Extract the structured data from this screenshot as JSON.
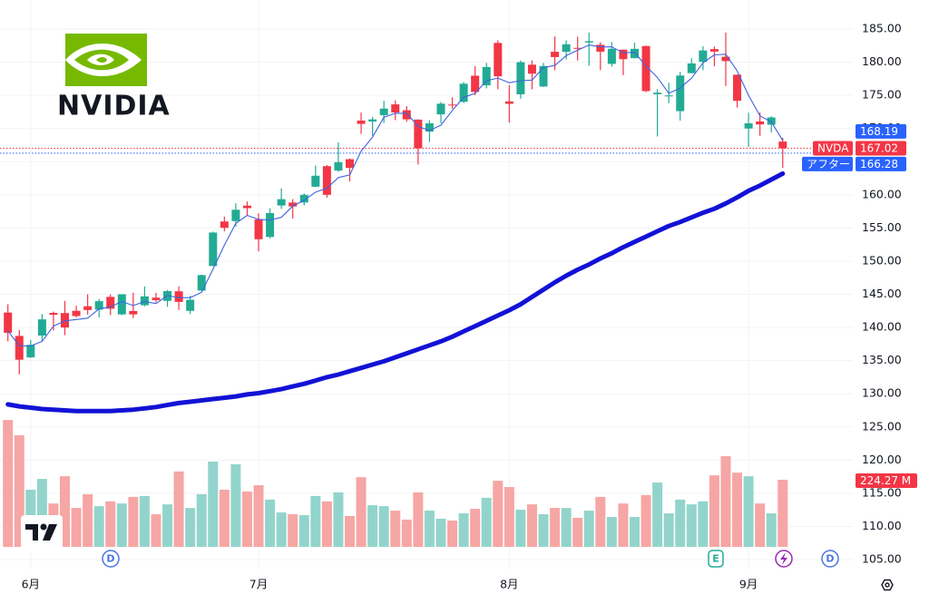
{
  "chart_data": {
    "type": "candlestick",
    "symbol": "NVDA",
    "logo_text": "NVIDIA",
    "categories": [
      null,
      null,
      "6月",
      null,
      null,
      null,
      null,
      null,
      null,
      null,
      null,
      null,
      null,
      null,
      null,
      null,
      null,
      null,
      null,
      null,
      null,
      null,
      "7月",
      null,
      null,
      null,
      null,
      null,
      null,
      null,
      null,
      null,
      null,
      null,
      null,
      null,
      null,
      null,
      null,
      null,
      null,
      null,
      null,
      null,
      "8月",
      null,
      null,
      null,
      null,
      null,
      null,
      null,
      null,
      null,
      null,
      null,
      null,
      null,
      null,
      null,
      null,
      null,
      null,
      null,
      null,
      "9月",
      null,
      null,
      null
    ],
    "open": [
      142.25,
      138.72,
      135.49,
      138.78,
      142.19,
      142.17,
      142.51,
      143.19,
      142.69,
      144.61,
      141.97,
      142.48,
      143.35,
      144.49,
      144.01,
      145.45,
      142.5,
      145.56,
      149.27,
      155.98,
      156.04,
      158.37,
      156.29,
      153.64,
      158.39,
      158.83,
      158.84,
      161.22,
      164.32,
      163.66,
      165.37,
      171.19,
      171.06,
      172.02,
      173.64,
      172.75,
      171.34,
      169.53,
      172.13,
      173.61,
      174.02,
      177.96,
      176.51,
      182.9,
      174.09,
      175.16,
      179.62,
      176.33,
      181.57,
      181.56,
      182.16,
      182.96,
      182.62,
      179.75,
      181.88,
      180.6,
      182.43,
      175.17,
      174.85,
      172.61,
      178.35,
      180.06,
      181.98,
      180.82,
      178.11,
      170.0,
      171.06,
      170.57,
      168.03
    ],
    "high": [
      143.49,
      139.62,
      138.12,
      142.0,
      142.39,
      144.0,
      143.27,
      145.0,
      144.29,
      144.99,
      145.0,
      145.22,
      146.18,
      145.22,
      145.65,
      146.2,
      144.78,
      147.96,
      154.45,
      156.72,
      158.71,
      158.99,
      157.2,
      157.96,
      160.98,
      159.35,
      160.22,
      164.42,
      164.5,
      167.89,
      165.49,
      172.4,
      171.75,
      174.16,
      174.25,
      173.38,
      171.39,
      171.26,
      174.0,
      174.72,
      177.0,
      179.38,
      179.89,
      183.3,
      176.54,
      180.26,
      180.26,
      179.88,
      183.88,
      183.3,
      183.85,
      184.48,
      183.0,
      183.03,
      181.9,
      182.94,
      182.5,
      175.92,
      176.9,
      178.55,
      180.6,
      182.4,
      182.35,
      184.47,
      178.15,
      172.38,
      172.41,
      171.86,
      168.59
    ],
    "low": [
      137.91,
      132.92,
      135.4,
      137.95,
      139.55,
      138.83,
      141.51,
      141.94,
      141.53,
      141.87,
      141.85,
      141.41,
      143.2,
      143.78,
      143.12,
      142.65,
      142.03,
      145.5,
      149.26,
      154.49,
      155.19,
      156.86,
      151.49,
      153.43,
      157.88,
      156.42,
      158.4,
      161.16,
      159.57,
      163.47,
      162.02,
      169.2,
      168.9,
      170.83,
      171.26,
      171.0,
      164.58,
      167.97,
      170.79,
      172.96,
      173.84,
      175.02,
      176.04,
      175.93,
      170.89,
      174.51,
      175.9,
      176.24,
      178.8,
      180.4,
      180.25,
      179.46,
      178.8,
      179.35,
      178.04,
      180.59,
      175.49,
      168.8,
      173.81,
      171.18,
      178.3,
      178.8,
      179.38,
      176.41,
      173.15,
      167.22,
      168.89,
      169.41,
      164.07
    ],
    "close": [
      139.19,
      135.13,
      137.38,
      141.22,
      141.92,
      139.99,
      141.72,
      142.63,
      143.96,
      142.83,
      145.0,
      141.97,
      144.69,
      144.12,
      145.48,
      143.85,
      144.17,
      147.9,
      154.31,
      155.02,
      157.75,
      157.99,
      153.3,
      157.25,
      159.34,
      158.24,
      160.0,
      162.88,
      160.0,
      164.92,
      164.07,
      170.7,
      171.37,
      173.0,
      172.41,
      171.38,
      167.03,
      170.78,
      173.74,
      173.5,
      176.75,
      175.51,
      179.27,
      177.87,
      173.72,
      180.0,
      178.26,
      179.42,
      180.77,
      182.7,
      182.06,
      183.16,
      181.59,
      182.02,
      180.45,
      182.01,
      175.64,
      175.4,
      174.98,
      177.99,
      179.81,
      181.77,
      181.6,
      180.17,
      174.18,
      170.78,
      170.62,
      171.66,
      167.02
    ],
    "up_color": "#22ab94",
    "down_color": "#f23645",
    "ylim": [
      105,
      185
    ],
    "yticks": [
      {
        "value": 185,
        "label": "185.00"
      },
      {
        "value": 180,
        "label": "180.00"
      },
      {
        "value": 175,
        "label": "175.00"
      },
      {
        "value": 170,
        "label": "170.00"
      },
      {
        "value": 165,
        "label": "165.00"
      },
      {
        "value": 160,
        "label": "160.00"
      },
      {
        "value": 155,
        "label": "155.00"
      },
      {
        "value": 150,
        "label": "150.00"
      },
      {
        "value": 145,
        "label": "145.00"
      },
      {
        "value": 140,
        "label": "140.00"
      },
      {
        "value": 135,
        "label": "135.00"
      },
      {
        "value": 130,
        "label": "130.00"
      },
      {
        "value": 125,
        "label": "125.00"
      },
      {
        "value": 120,
        "label": "120.00"
      },
      {
        "value": 115,
        "label": "115.00"
      },
      {
        "value": 110,
        "label": "110.00"
      },
      {
        "value": 105,
        "label": "105.00"
      }
    ],
    "grid": true,
    "ma_short": {
      "color": "#3d63e0",
      "values": [
        139.5,
        137.2,
        137.2,
        137.9,
        140.2,
        141.0,
        141.2,
        141.4,
        142.8,
        143.1,
        143.9,
        143.3,
        143.9,
        143.6,
        144.8,
        144.5,
        144.5,
        145.3,
        148.8,
        152.4,
        155.7,
        156.9,
        156.3,
        156.2,
        156.6,
        158.3,
        159.2,
        160.4,
        161.0,
        162.6,
        163.0,
        166.6,
        168.7,
        171.7,
        172.3,
        172.3,
        170.3,
        169.7,
        170.5,
        172.7,
        174.7,
        175.3,
        177.2,
        177.6,
        176.9,
        177.2,
        177.3,
        179.2,
        179.5,
        181.0,
        181.8,
        182.6,
        182.3,
        182.3,
        181.4,
        181.5,
        179.4,
        177.7,
        175.3,
        176.1,
        177.6,
        179.9,
        181.1,
        181.2,
        178.7,
        175.0,
        171.9,
        171.0,
        168.19
      ]
    },
    "ma_long": {
      "color": "#1212d6",
      "values": [
        128.4,
        128.1,
        127.9,
        127.7,
        127.6,
        127.5,
        127.4,
        127.4,
        127.4,
        127.4,
        127.5,
        127.6,
        127.8,
        128.0,
        128.3,
        128.6,
        128.8,
        129.0,
        129.2,
        129.4,
        129.6,
        129.9,
        130.1,
        130.4,
        130.7,
        131.1,
        131.5,
        132.0,
        132.5,
        132.9,
        133.4,
        133.9,
        134.4,
        134.9,
        135.5,
        136.1,
        136.7,
        137.3,
        137.9,
        138.6,
        139.4,
        140.2,
        141.0,
        141.8,
        142.6,
        143.5,
        144.6,
        145.7,
        146.8,
        147.8,
        148.7,
        149.5,
        150.4,
        151.2,
        152.1,
        152.9,
        153.7,
        154.5,
        155.3,
        155.9,
        156.6,
        157.3,
        157.9,
        158.7,
        159.6,
        160.6,
        161.4,
        162.3,
        163.2
      ]
    },
    "volume": {
      "up_color": "#92d4cb",
      "down_color": "#f6a6a4",
      "ylim": [
        0,
        600
      ],
      "values": [
        424,
        373,
        191,
        227,
        145,
        236,
        130,
        176,
        136,
        152,
        145,
        167,
        170,
        109,
        142,
        252,
        130,
        176,
        285,
        191,
        276,
        185,
        206,
        158,
        115,
        109,
        106,
        170,
        152,
        182,
        103,
        233,
        139,
        136,
        121,
        91,
        182,
        121,
        94,
        88,
        112,
        127,
        164,
        221,
        200,
        124,
        142,
        109,
        130,
        130,
        97,
        121,
        167,
        100,
        145,
        100,
        173,
        215,
        112,
        158,
        142,
        152,
        239,
        303,
        248,
        236,
        145,
        112,
        224.27
      ],
      "last_value_label": "224.27 M"
    },
    "after_hours": {
      "label": "アフター",
      "value": 166.28
    },
    "events": [
      "D",
      "E",
      "D"
    ]
  }
}
